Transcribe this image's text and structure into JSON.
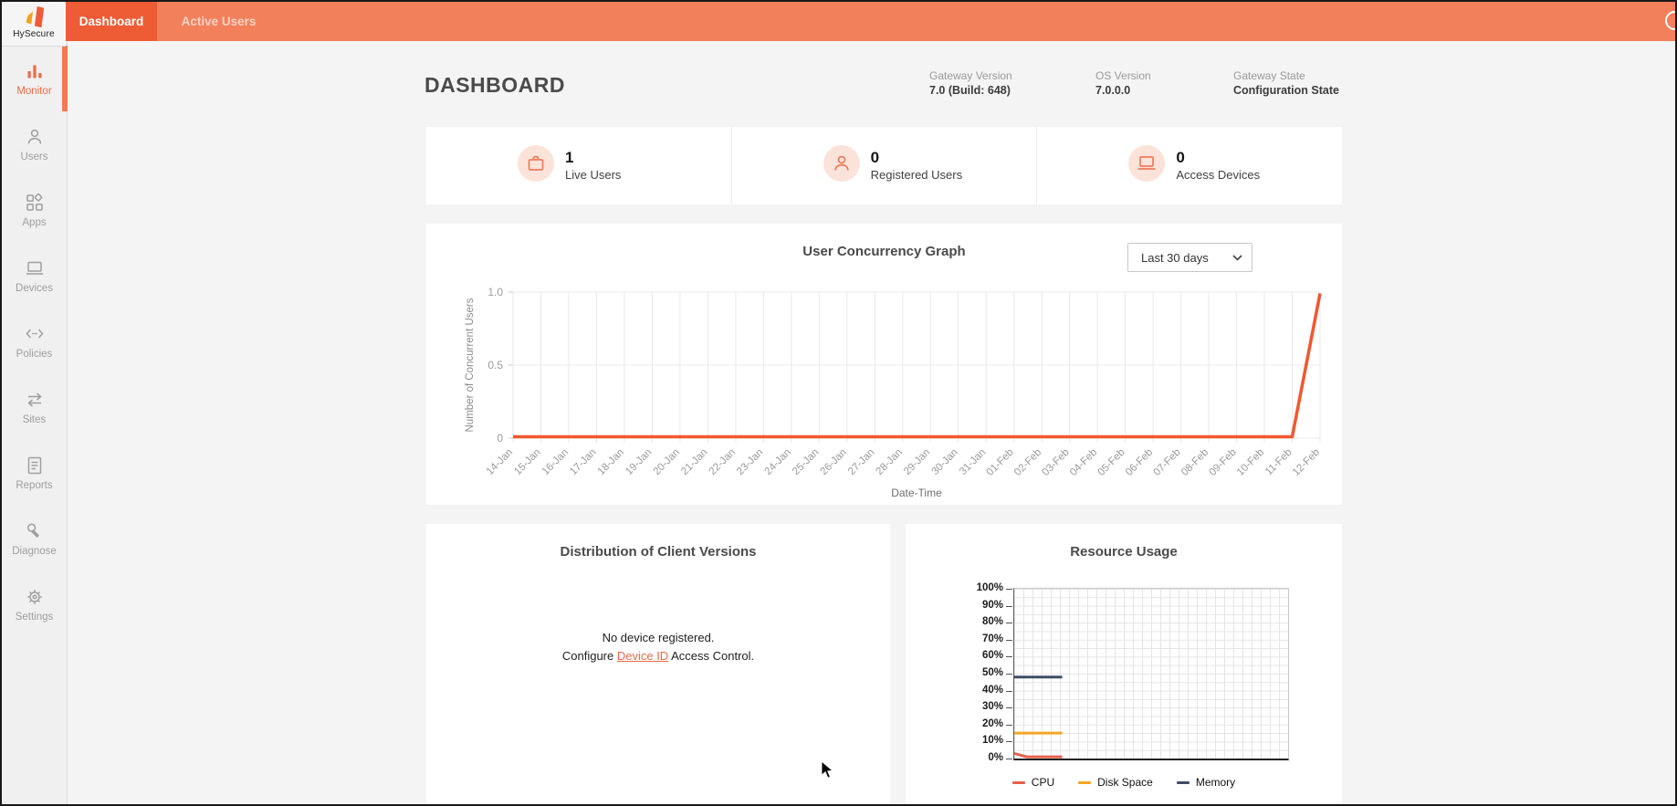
{
  "topbar": {
    "logo_text": "HySecure",
    "tabs": [
      {
        "label": "Dashboard",
        "active": true
      },
      {
        "label": "Active Users",
        "active": false
      }
    ]
  },
  "sidebar": {
    "items": [
      {
        "label": "Monitor",
        "icon": "bar-chart-icon",
        "active": true
      },
      {
        "label": "Users",
        "icon": "person-icon",
        "active": false
      },
      {
        "label": "Apps",
        "icon": "apps-grid-icon",
        "active": false
      },
      {
        "label": "Devices",
        "icon": "laptop-icon",
        "active": false
      },
      {
        "label": "Policies",
        "icon": "code-brackets-icon",
        "active": false
      },
      {
        "label": "Sites",
        "icon": "arrows-swap-icon",
        "active": false
      },
      {
        "label": "Reports",
        "icon": "document-icon",
        "active": false
      },
      {
        "label": "Diagnose",
        "icon": "wrench-icon",
        "active": false
      },
      {
        "label": "Settings",
        "icon": "gear-icon",
        "active": false
      }
    ]
  },
  "header": {
    "title": "DASHBOARD",
    "info": [
      {
        "label": "Gateway Version",
        "value": "7.0 (Build: 648)"
      },
      {
        "label": "OS Version",
        "value": "7.0.0.0"
      },
      {
        "label": "Gateway State",
        "value": "Configuration State"
      }
    ]
  },
  "stats": {
    "items": [
      {
        "icon": "briefcase-icon",
        "value": "1",
        "label": "Live Users"
      },
      {
        "icon": "person-icon",
        "value": "0",
        "label": "Registered Users"
      },
      {
        "icon": "laptop-icon",
        "value": "0",
        "label": "Access Devices"
      }
    ]
  },
  "concurrency": {
    "range_selector": "Last 30 days"
  },
  "client_versions": {
    "title": "Distribution of Client Versions",
    "line1": "No device registered.",
    "line2_prefix": "Configure ",
    "link_text": "Device ID",
    "line2_suffix": " Access Control."
  },
  "colors": {
    "accent": "#ED6A45",
    "topbar": "#F2805B",
    "active_tab": "#EE5C36",
    "concurrency_line": "#F2572E",
    "cpu": "#E8604C",
    "disk_space": "#F5A623",
    "memory": "#3D4E63"
  },
  "chart_data": [
    {
      "id": "user_concurrency",
      "type": "line",
      "title": "User Concurrency Graph",
      "xlabel": "Date-Time",
      "ylabel": "Number of Concurrent Users",
      "ylim": [
        0,
        1
      ],
      "grid": true,
      "legend_position": "none",
      "yticks": [
        {
          "value": 1,
          "label": "1.0"
        },
        {
          "value": 0.5,
          "label": "0.5"
        },
        {
          "value": 0,
          "label": "0"
        }
      ],
      "categories": [
        "14-Jan",
        "15-Jan",
        "16-Jan",
        "17-Jan",
        "18-Jan",
        "19-Jan",
        "20-Jan",
        "21-Jan",
        "22-Jan",
        "23-Jan",
        "24-Jan",
        "25-Jan",
        "26-Jan",
        "27-Jan",
        "28-Jan",
        "29-Jan",
        "30-Jan",
        "31-Jan",
        "01-Feb",
        "02-Feb",
        "03-Feb",
        "04-Feb",
        "05-Feb",
        "06-Feb",
        "07-Feb",
        "08-Feb",
        "09-Feb",
        "10-Feb",
        "11-Feb",
        "12-Feb"
      ],
      "series": [
        {
          "name": "Concurrent Users",
          "color": "#F2572E",
          "values": [
            0,
            0,
            0,
            0,
            0,
            0,
            0,
            0,
            0,
            0,
            0,
            0,
            0,
            0,
            0,
            0,
            0,
            0,
            0,
            0,
            0,
            0,
            0,
            0,
            0,
            0,
            0,
            0,
            0,
            1
          ]
        }
      ]
    },
    {
      "id": "resource_usage",
      "type": "line",
      "title": "Resource Usage",
      "ylim": [
        0,
        100
      ],
      "grid": true,
      "legend_position": "bottom",
      "ytick_labels": [
        "100%",
        "90%",
        "80%",
        "70%",
        "60%",
        "50%",
        "40%",
        "30%",
        "20%",
        "10%",
        "0%"
      ],
      "series": [
        {
          "name": "CPU",
          "color": "#E8604C",
          "points": [
            [
              0,
              3
            ],
            [
              0.045,
              1
            ],
            [
              0.175,
              1
            ]
          ]
        },
        {
          "name": "Disk Space",
          "color": "#F5A623",
          "points": [
            [
              0,
              15
            ],
            [
              0.175,
              15
            ]
          ]
        },
        {
          "name": "Memory",
          "color": "#3D4E63",
          "points": [
            [
              0,
              48
            ],
            [
              0.175,
              48
            ]
          ]
        }
      ]
    }
  ]
}
